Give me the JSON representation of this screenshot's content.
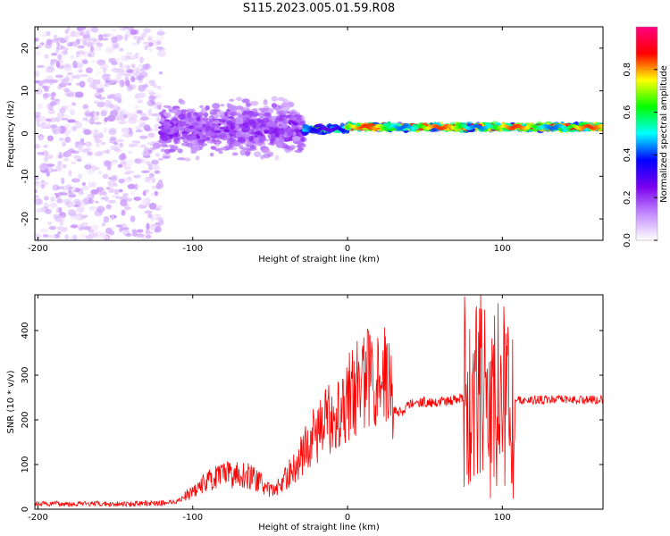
{
  "title": "S115.2023.005.01.59.R08",
  "chart_data": [
    {
      "type": "heatmap",
      "name": "spectrogram",
      "xlabel": "Height of straight line (km)",
      "ylabel": "Frequency (Hz)",
      "xlim": [
        -202,
        165
      ],
      "ylim": [
        -25,
        25
      ],
      "xticks": [
        -200,
        -100,
        0,
        100
      ],
      "yticks": [
        -20,
        -10,
        0,
        10,
        20
      ],
      "colorbar": {
        "label": "Normalized spectral amplitude",
        "range": [
          0,
          1
        ],
        "ticks": [
          0.0,
          0.2,
          0.4,
          0.6,
          0.8
        ],
        "colors": [
          "#ffffff",
          "#c38bff",
          "#7a00ee",
          "#0000ff",
          "#00ffff",
          "#00ff00",
          "#ffff00",
          "#ff0000",
          "#ff007f"
        ]
      },
      "regions": [
        {
          "x_from": -202,
          "x_to": -120,
          "freq_spread_hz": 25,
          "amplitude": 0.1,
          "desc": "broadband noise"
        },
        {
          "x_from": -120,
          "x_to": -28,
          "freq_center_hz": 1,
          "freq_spread_hz": 8,
          "amplitude": 0.2
        },
        {
          "x_from": -28,
          "x_to": 0,
          "freq_center_hz": 1,
          "freq_spread_hz": 1,
          "amplitude": 0.55
        },
        {
          "x_from": 0,
          "x_to": 165,
          "freq_center_hz": 1.5,
          "freq_spread_hz": 1,
          "amplitude": 0.85
        }
      ]
    },
    {
      "type": "line",
      "name": "snr",
      "xlabel": "Height of straight line (km)",
      "ylabel": "SNR (10 * v/v)",
      "xlim": [
        -202,
        165
      ],
      "ylim": [
        0,
        480
      ],
      "xticks": [
        -200,
        -100,
        0,
        100
      ],
      "yticks": [
        0,
        100,
        200,
        300,
        400
      ],
      "color": "#ff0000",
      "series": [
        {
          "name": "SNR envelope",
          "x": [
            -202,
            -180,
            -160,
            -140,
            -120,
            -110,
            -100,
            -90,
            -80,
            -70,
            -60,
            -50,
            -45,
            -40,
            -35,
            -30,
            -25,
            -20,
            -15,
            -10,
            -5,
            0,
            5,
            10,
            15,
            20,
            25,
            30,
            35,
            40,
            45,
            50,
            60,
            70,
            75,
            80,
            85,
            90,
            95,
            100,
            105,
            110,
            120,
            130,
            140,
            150,
            160,
            165
          ],
          "y": [
            12,
            12,
            12,
            12,
            14,
            18,
            40,
            65,
            75,
            80,
            70,
            40,
            50,
            70,
            90,
            120,
            150,
            170,
            190,
            210,
            230,
            250,
            270,
            285,
            300,
            310,
            300,
            225,
            215,
            235,
            240,
            240,
            240,
            245,
            250,
            255,
            255,
            250,
            245,
            240,
            235,
            245,
            245,
            245,
            245,
            245,
            245,
            245
          ]
        }
      ]
    }
  ]
}
